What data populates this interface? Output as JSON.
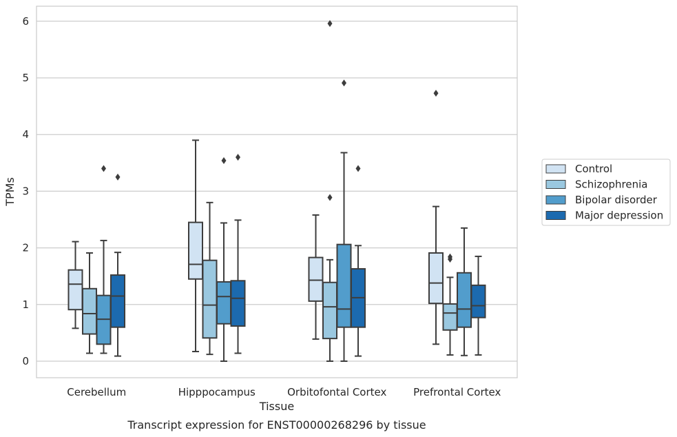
{
  "chart_data": {
    "type": "box",
    "categories": [
      "Cerebellum",
      "Hipppocampus",
      "Orbitofontal Cortex",
      "Prefrontal Cortex"
    ],
    "series": [
      {
        "name": "Control",
        "color": "#d1e3f3",
        "boxes": [
          {
            "whislo": 0.58,
            "q1": 0.91,
            "med": 1.36,
            "q3": 1.61,
            "whishi": 2.11,
            "fliers": []
          },
          {
            "whislo": 0.17,
            "q1": 1.45,
            "med": 1.71,
            "q3": 2.45,
            "whishi": 3.9,
            "fliers": []
          },
          {
            "whislo": 0.39,
            "q1": 1.06,
            "med": 1.43,
            "q3": 1.83,
            "whishi": 2.58,
            "fliers": []
          },
          {
            "whislo": 0.3,
            "q1": 1.02,
            "med": 1.38,
            "q3": 1.91,
            "whishi": 2.73,
            "fliers": [
              4.73
            ]
          }
        ]
      },
      {
        "name": "Schizophrenia",
        "color": "#9ac8e0",
        "boxes": [
          {
            "whislo": 0.14,
            "q1": 0.48,
            "med": 0.84,
            "q3": 1.28,
            "whishi": 1.91,
            "fliers": []
          },
          {
            "whislo": 0.12,
            "q1": 0.41,
            "med": 0.99,
            "q3": 1.78,
            "whishi": 2.8,
            "fliers": []
          },
          {
            "whislo": 0.0,
            "q1": 0.4,
            "med": 0.96,
            "q3": 1.39,
            "whishi": 1.79,
            "fliers": [
              2.89,
              5.96
            ]
          },
          {
            "whislo": 0.11,
            "q1": 0.55,
            "med": 0.85,
            "q3": 1.01,
            "whishi": 1.48,
            "fliers": [
              1.8,
              1.84
            ]
          }
        ]
      },
      {
        "name": "Bipolar disorder",
        "color": "#529dcc",
        "boxes": [
          {
            "whislo": 0.14,
            "q1": 0.3,
            "med": 0.74,
            "q3": 1.16,
            "whishi": 2.13,
            "fliers": [
              3.4
            ]
          },
          {
            "whislo": 0.0,
            "q1": 0.66,
            "med": 1.14,
            "q3": 1.4,
            "whishi": 2.44,
            "fliers": [
              3.54
            ]
          },
          {
            "whislo": 0.0,
            "q1": 0.6,
            "med": 0.92,
            "q3": 2.06,
            "whishi": 3.68,
            "fliers": [
              4.91
            ]
          },
          {
            "whislo": 0.1,
            "q1": 0.6,
            "med": 0.92,
            "q3": 1.56,
            "whishi": 2.35,
            "fliers": []
          }
        ]
      },
      {
        "name": "Major depression",
        "color": "#1c6aaf",
        "boxes": [
          {
            "whislo": 0.09,
            "q1": 0.6,
            "med": 1.15,
            "q3": 1.52,
            "whishi": 1.92,
            "fliers": [
              3.25
            ]
          },
          {
            "whislo": 0.14,
            "q1": 0.62,
            "med": 1.11,
            "q3": 1.42,
            "whishi": 2.49,
            "fliers": [
              3.6
            ]
          },
          {
            "whislo": 0.09,
            "q1": 0.6,
            "med": 1.12,
            "q3": 1.63,
            "whishi": 2.04,
            "fliers": [
              3.4
            ]
          },
          {
            "whislo": 0.11,
            "q1": 0.77,
            "med": 0.98,
            "q3": 1.34,
            "whishi": 1.85,
            "fliers": []
          }
        ]
      }
    ],
    "xlabel": "Tissue",
    "ylabel": "TPMs",
    "ylim": [
      -0.3,
      6.28
    ],
    "yticks": [
      0,
      1,
      2,
      3,
      4,
      5,
      6
    ],
    "grid": true,
    "legend_placement": "center-right outside",
    "caption": "Transcript expression for ENST00000268296 by tissue"
  }
}
